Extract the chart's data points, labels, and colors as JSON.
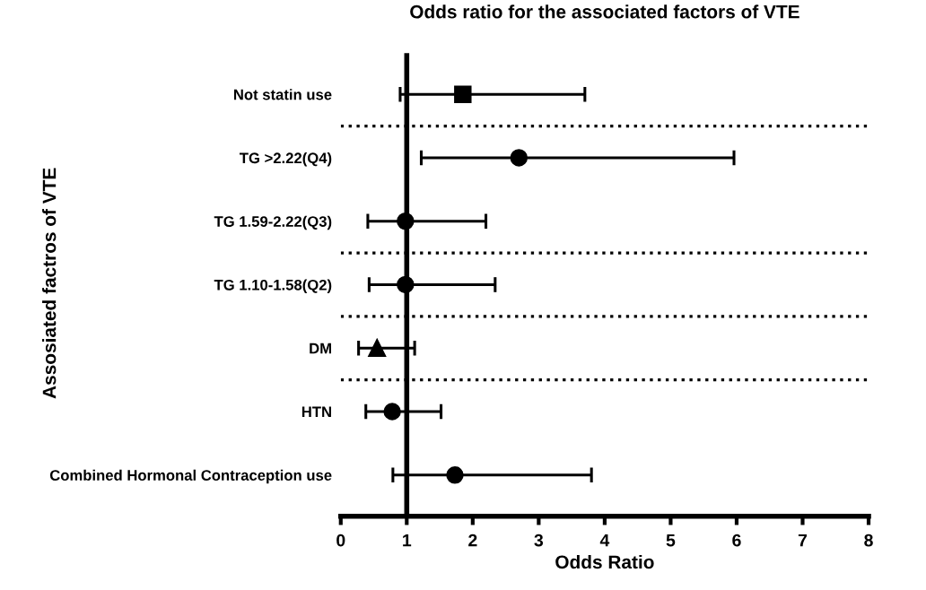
{
  "chart_data": {
    "type": "scatter",
    "orientation": "horizontal",
    "title": "Odds ratio for the associated factors of VTE",
    "xlabel": "Odds Ratio",
    "ylabel": "Assosiated factros of VTE",
    "categories": [
      "Not statin use",
      "TG >2.22(Q4)",
      "TG 1.59-2.22(Q3)",
      "TG 1.10-1.58(Q2)",
      "DM",
      "HTN",
      "Combined Hormonal Contraception use"
    ],
    "series": [
      {
        "color": "#000000",
        "marker": "square",
        "values": [
          1.85,
          null,
          null,
          null,
          null,
          null,
          null
        ],
        "errors": [
          [
            0.9,
            3.7
          ],
          null,
          null,
          null,
          null,
          null,
          null
        ]
      },
      {
        "color": "#000000",
        "marker": "circle",
        "values": [
          null,
          2.7,
          0.98,
          0.98,
          null,
          0.78,
          1.73
        ],
        "errors": [
          null,
          [
            1.22,
            5.96
          ],
          [
            0.41,
            2.2
          ],
          [
            0.43,
            2.34
          ],
          null,
          [
            0.38,
            1.52
          ],
          [
            0.79,
            3.8
          ]
        ]
      },
      {
        "color": "#000000",
        "marker": "triangle",
        "values": [
          null,
          null,
          null,
          null,
          0.55,
          null,
          null
        ],
        "errors": [
          null,
          null,
          null,
          null,
          [
            0.27,
            1.12
          ],
          null,
          null
        ]
      }
    ],
    "xlim": [
      0,
      8
    ],
    "xticks": [
      0,
      1,
      2,
      3,
      4,
      5,
      6,
      7,
      8
    ],
    "ref_lines": [
      {
        "axis": "x",
        "value": 1,
        "line_style": "solid",
        "color": "#000000"
      }
    ],
    "grid": false
  }
}
